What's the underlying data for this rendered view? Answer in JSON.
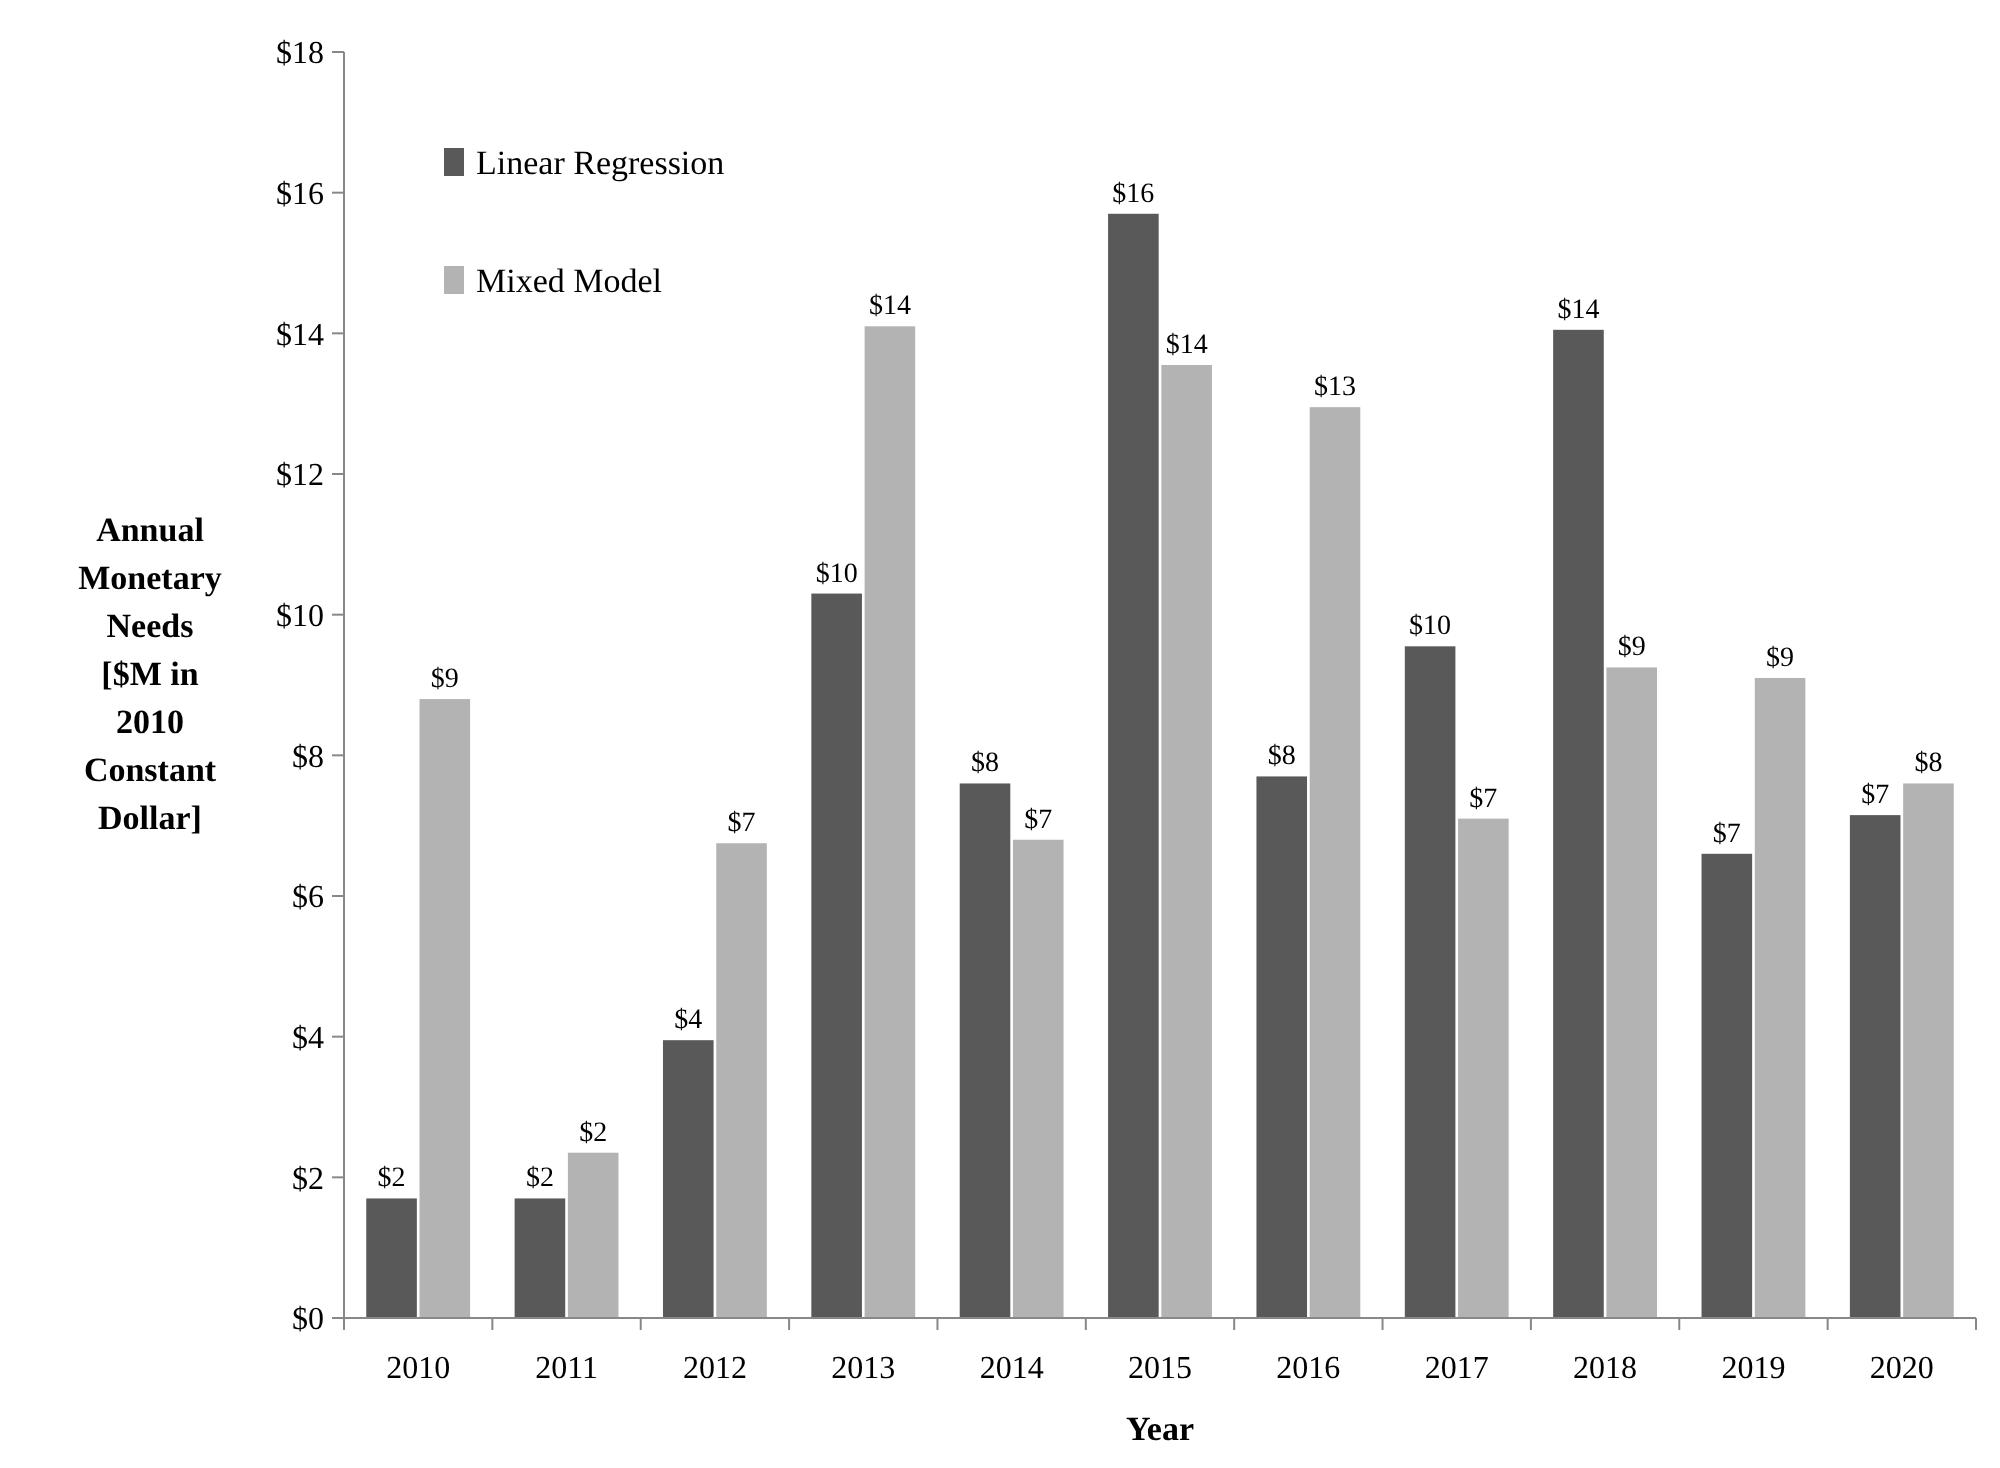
{
  "chart_data": {
    "type": "bar",
    "xlabel": "Year",
    "ylabel": "Annual Monetary Needs [$M in 2010 Constant Dollar]",
    "categories": [
      "2010",
      "2011",
      "2012",
      "2013",
      "2014",
      "2015",
      "2016",
      "2017",
      "2018",
      "2019",
      "2020"
    ],
    "series": [
      {
        "name": "Linear Regression",
        "color": "#595959",
        "values": [
          1.7,
          1.7,
          3.95,
          10.3,
          7.6,
          15.7,
          7.7,
          9.55,
          14.05,
          6.6,
          7.15
        ],
        "value_labels": [
          "$2",
          "$2",
          "$4",
          "$10",
          "$8",
          "$16",
          "$8",
          "$10",
          "$14",
          "$7",
          "$7"
        ]
      },
      {
        "name": "Mixed Model",
        "color": "#b3b3b3",
        "values": [
          8.8,
          2.35,
          6.75,
          14.1,
          6.8,
          13.55,
          12.95,
          7.1,
          9.25,
          9.1,
          7.6
        ],
        "value_labels": [
          "$9",
          "$2",
          "$7",
          "$14",
          "$7",
          "$14",
          "$13",
          "$7",
          "$9",
          "$9",
          "$8"
        ]
      }
    ],
    "ylim": [
      0,
      18
    ],
    "yticks": [
      {
        "value": 0,
        "label": "$0"
      },
      {
        "value": 2,
        "label": "$2"
      },
      {
        "value": 4,
        "label": "$4"
      },
      {
        "value": 6,
        "label": "$6"
      },
      {
        "value": 8,
        "label": "$8"
      },
      {
        "value": 10,
        "label": "$10"
      },
      {
        "value": 12,
        "label": "$12"
      },
      {
        "value": 14,
        "label": "$14"
      },
      {
        "value": 16,
        "label": "$16"
      },
      {
        "value": 18,
        "label": "$18"
      }
    ],
    "legend": "top left",
    "grid": false
  }
}
